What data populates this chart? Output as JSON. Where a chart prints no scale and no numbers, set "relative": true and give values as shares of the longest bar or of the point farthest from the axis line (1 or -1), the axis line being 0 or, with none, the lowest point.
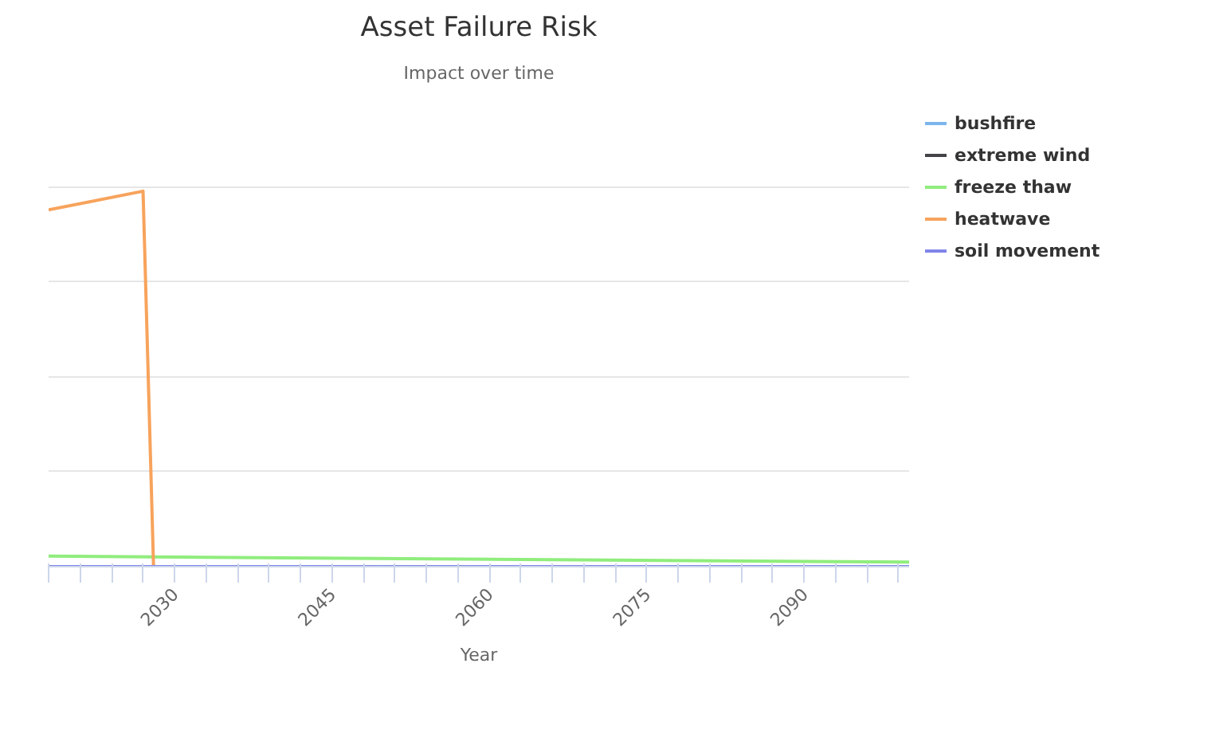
{
  "chart_data": {
    "type": "line",
    "title": "Asset Failure Risk",
    "subtitle": "Impact over time",
    "xlabel": "Year",
    "relative": true,
    "grid": "y",
    "legend": "right",
    "tick_labels": "x",
    "marker": "none",
    "line_style": "solid",
    "xlim": [
      2018,
      2100
    ],
    "xticks": [
      {
        "value": 2018,
        "label": null
      },
      {
        "value": 2021,
        "label": null
      },
      {
        "value": 2024,
        "label": null
      },
      {
        "value": 2027,
        "label": null
      },
      2030,
      {
        "value": 2033,
        "label": null
      },
      {
        "value": 2036,
        "label": null
      },
      {
        "value": 2039,
        "label": null
      },
      {
        "value": 2042,
        "label": null
      },
      2045,
      {
        "value": 2048,
        "label": null
      },
      {
        "value": 2051,
        "label": null
      },
      {
        "value": 2054,
        "label": null
      },
      {
        "value": 2057,
        "label": null
      },
      2060,
      {
        "value": 2063,
        "label": null
      },
      {
        "value": 2066,
        "label": null
      },
      {
        "value": 2069,
        "label": null
      },
      {
        "value": 2072,
        "label": null
      },
      2075,
      {
        "value": 2078,
        "label": null
      },
      {
        "value": 2081,
        "label": null
      },
      {
        "value": 2084,
        "label": null
      },
      {
        "value": 2087,
        "label": null
      },
      2090,
      {
        "value": 2093,
        "label": null
      },
      {
        "value": 2096,
        "label": null
      },
      {
        "value": 2099,
        "label": null
      }
    ],
    "series": [
      {
        "name": "bushfire",
        "color": "#7cb5ec"
      },
      {
        "name": "extreme wind",
        "color": "#434348"
      },
      {
        "name": "freeze thaw",
        "color": "#90ed7d",
        "x": [
          2018,
          2100
        ],
        "values": [
          0.028,
          0.012
        ]
      },
      {
        "name": "heatwave",
        "color": "#f7a35c",
        "x": [
          2018,
          2027,
          2028
        ],
        "values": [
          0.95,
          1,
          0
        ]
      },
      {
        "name": "soil movement",
        "color": "#8085e9",
        "x": [
          2018,
          2100
        ],
        "values": [
          0,
          0
        ]
      }
    ]
  }
}
